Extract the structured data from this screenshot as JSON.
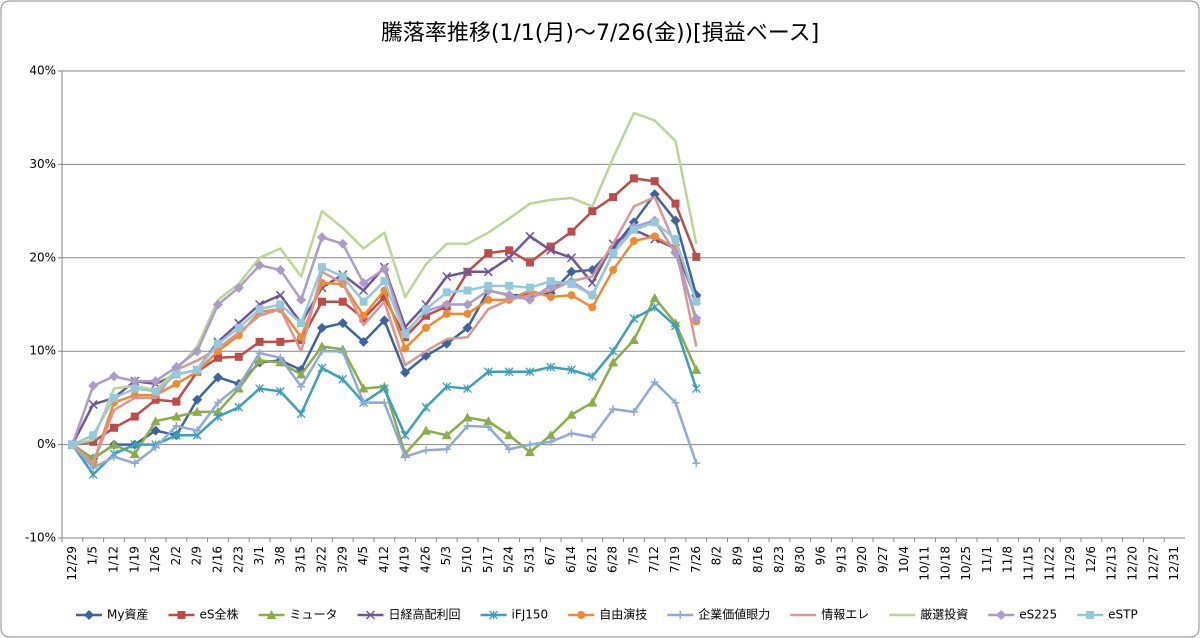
{
  "chart_data": {
    "type": "line",
    "title": "騰落率推移(1/1(月)〜7/26(金))[損益ベース]",
    "categories": [
      "12/29",
      "1/5",
      "1/12",
      "1/19",
      "1/26",
      "2/2",
      "2/9",
      "2/16",
      "2/23",
      "3/1",
      "3/8",
      "3/15",
      "3/22",
      "3/29",
      "4/5",
      "4/12",
      "4/19",
      "4/26",
      "5/3",
      "5/10",
      "5/17",
      "5/24",
      "5/31",
      "6/7",
      "6/14",
      "6/21",
      "6/28",
      "7/5",
      "7/12",
      "7/19",
      "7/26",
      "8/2",
      "8/9",
      "8/16",
      "8/23",
      "8/30",
      "9/6",
      "9/13",
      "9/20",
      "9/27",
      "10/4",
      "10/11",
      "10/18",
      "10/25",
      "11/1",
      "11/8",
      "11/15",
      "11/22",
      "11/29",
      "12/6",
      "12/13",
      "12/20",
      "12/27",
      "12/31"
    ],
    "ylim": [
      -10,
      40
    ],
    "yticks": [
      {
        "value": -10,
        "label": "-10%"
      },
      {
        "value": 0,
        "label": "0%"
      },
      {
        "value": 10,
        "label": "10%"
      },
      {
        "value": 20,
        "label": "20%"
      },
      {
        "value": 30,
        "label": "30%"
      },
      {
        "value": 40,
        "label": "40%"
      }
    ],
    "grid": true,
    "legend": "bottom",
    "series": [
      {
        "name": "My資産",
        "color": "#3e64a0",
        "marker": "diamond",
        "values": [
          0,
          -1.5,
          0,
          0,
          1.5,
          1,
          4.8,
          7.2,
          6.5,
          8.8,
          9,
          8,
          12.5,
          13,
          11,
          13.3,
          7.7,
          9.5,
          10.8,
          12.5,
          16.5,
          16,
          16,
          16.2,
          18.5,
          18.7,
          21,
          23.8,
          26.8,
          24,
          16,
          null,
          null,
          null,
          null,
          null,
          null,
          null,
          null,
          null,
          null,
          null,
          null,
          null,
          null,
          null,
          null,
          null,
          null,
          null,
          null,
          null,
          null,
          null
        ]
      },
      {
        "name": "eS全株",
        "color": "#be4b48",
        "marker": "square",
        "values": [
          0,
          0.3,
          1.8,
          3,
          4.8,
          4.6,
          7.8,
          9.3,
          9.4,
          11,
          11,
          11.2,
          15.3,
          15.3,
          13.5,
          15.8,
          11.5,
          13.8,
          14.8,
          18.5,
          20.5,
          20.8,
          19.5,
          21.2,
          22.8,
          25,
          26.5,
          28.5,
          28.2,
          25.8,
          20.1,
          null,
          null,
          null,
          null,
          null,
          null,
          null,
          null,
          null,
          null,
          null,
          null,
          null,
          null,
          null,
          null,
          null,
          null,
          null,
          null,
          null,
          null,
          null
        ]
      },
      {
        "name": "ミュータ",
        "color": "#8aad45",
        "marker": "triangle",
        "values": [
          0,
          -1.5,
          0,
          -1,
          2.5,
          3,
          3.5,
          3.5,
          6,
          9,
          8.8,
          7.5,
          10.5,
          10.2,
          6,
          6.2,
          -1,
          1.5,
          1,
          2.9,
          2.5,
          1,
          -0.8,
          1,
          3.2,
          4.5,
          8.8,
          11.2,
          15.7,
          13,
          8,
          null,
          null,
          null,
          null,
          null,
          null,
          null,
          null,
          null,
          null,
          null,
          null,
          null,
          null,
          null,
          null,
          null,
          null,
          null,
          null,
          null,
          null,
          null
        ]
      },
      {
        "name": "日経高配利回",
        "color": "#70559a",
        "marker": "x",
        "values": [
          0,
          4.3,
          5,
          6.8,
          6.5,
          7.5,
          8,
          11,
          13,
          15,
          16,
          13,
          16.8,
          18.2,
          16.5,
          19,
          12.6,
          15,
          18,
          18.5,
          18.5,
          20,
          22.3,
          20.8,
          20,
          17.3,
          21.5,
          23,
          22,
          21,
          15.5,
          null,
          null,
          null,
          null,
          null,
          null,
          null,
          null,
          null,
          null,
          null,
          null,
          null,
          null,
          null,
          null,
          null,
          null,
          null,
          null,
          null,
          null,
          null
        ]
      },
      {
        "name": "iFJ150",
        "color": "#3aa0bc",
        "marker": "star",
        "values": [
          0,
          -3.2,
          -1,
          0,
          0,
          1,
          1,
          3,
          4,
          6,
          5.7,
          3.3,
          8.2,
          7,
          4.5,
          6,
          1,
          4,
          6.2,
          6,
          7.8,
          7.8,
          7.8,
          8.3,
          8,
          7.3,
          10,
          13.5,
          14.7,
          12.7,
          6,
          null,
          null,
          null,
          null,
          null,
          null,
          null,
          null,
          null,
          null,
          null,
          null,
          null,
          null,
          null,
          null,
          null,
          null,
          null,
          null,
          null,
          null,
          null
        ]
      },
      {
        "name": "自由演技",
        "color": "#f08a30",
        "marker": "circle",
        "values": [
          0,
          -2,
          4.5,
          5.3,
          5.3,
          6.5,
          7.8,
          10,
          11.7,
          14.2,
          14.5,
          11.5,
          17.3,
          17.2,
          13.8,
          16.5,
          10.3,
          12.5,
          14,
          14,
          15.5,
          15.5,
          16.5,
          15.8,
          16,
          14.7,
          18.7,
          21.8,
          22.3,
          21,
          13.2,
          null,
          null,
          null,
          null,
          null,
          null,
          null,
          null,
          null,
          null,
          null,
          null,
          null,
          null,
          null,
          null,
          null,
          null,
          null,
          null,
          null,
          null,
          null
        ]
      },
      {
        "name": "企業価値眼力",
        "color": "#8faad6",
        "marker": "plus",
        "values": [
          0,
          -2.5,
          -1.3,
          -2,
          -0.3,
          2,
          1.5,
          4.5,
          6.3,
          9.8,
          9.3,
          6.2,
          10,
          10,
          4.5,
          4.5,
          -1.3,
          -0.6,
          -0.5,
          2,
          1.9,
          -0.5,
          0,
          0.3,
          1.2,
          0.8,
          3.8,
          3.5,
          6.7,
          4.5,
          -2,
          null,
          null,
          null,
          null,
          null,
          null,
          null,
          null,
          null,
          null,
          null,
          null,
          null,
          null,
          null,
          null,
          null,
          null,
          null,
          null,
          null,
          null,
          null
        ]
      },
      {
        "name": "情報エレ",
        "color": "#d99694",
        "marker": "none",
        "values": [
          0,
          -2,
          3.7,
          5,
          5,
          8,
          9,
          10.3,
          12,
          13.8,
          14.5,
          10,
          18.5,
          17.3,
          12.8,
          15.3,
          8.5,
          10,
          11.3,
          11.5,
          14.5,
          15.5,
          16,
          16.5,
          17.5,
          18,
          21.5,
          25.5,
          26.5,
          21.3,
          10.5,
          null,
          null,
          null,
          null,
          null,
          null,
          null,
          null,
          null,
          null,
          null,
          null,
          null,
          null,
          null,
          null,
          null,
          null,
          null,
          null,
          null,
          null,
          null
        ]
      },
      {
        "name": "厳選投資",
        "color": "#bcd596",
        "marker": "none",
        "values": [
          0,
          0.5,
          6,
          6.3,
          5.8,
          8,
          10.5,
          15.5,
          17.2,
          20,
          21,
          18,
          25,
          23.2,
          21,
          22.7,
          15.8,
          19.3,
          21.5,
          21.5,
          22.7,
          24.2,
          25.8,
          26.2,
          26.4,
          25.5,
          30.7,
          35.5,
          34.7,
          32.5,
          21.5,
          null,
          null,
          null,
          null,
          null,
          null,
          null,
          null,
          null,
          null,
          null,
          null,
          null,
          null,
          null,
          null,
          null,
          null,
          null,
          null,
          null,
          null,
          null
        ]
      },
      {
        "name": "eS225",
        "color": "#ad9cc9",
        "marker": "diamond",
        "values": [
          0,
          6.3,
          7.3,
          6.8,
          6.8,
          8.3,
          10,
          15,
          16.8,
          19.2,
          18.7,
          15.5,
          22.2,
          21.5,
          17.3,
          18.8,
          12,
          14.3,
          15,
          15,
          16.5,
          16,
          15.5,
          17,
          17.5,
          16,
          20.5,
          23.3,
          24,
          20.5,
          13.5,
          null,
          null,
          null,
          null,
          null,
          null,
          null,
          null,
          null,
          null,
          null,
          null,
          null,
          null,
          null,
          null,
          null,
          null,
          null,
          null,
          null,
          null,
          null
        ]
      },
      {
        "name": "eSTP",
        "color": "#93c9dc",
        "marker": "square",
        "values": [
          0,
          1,
          5,
          6,
          5.7,
          7.5,
          8,
          10.8,
          12.5,
          14.5,
          15,
          13,
          19,
          18,
          15.3,
          17.5,
          11.8,
          14.5,
          16.3,
          16.5,
          17,
          17,
          16.8,
          17.5,
          17.2,
          16,
          20.5,
          23,
          23.8,
          22,
          15.3,
          null,
          null,
          null,
          null,
          null,
          null,
          null,
          null,
          null,
          null,
          null,
          null,
          null,
          null,
          null,
          null,
          null,
          null,
          null,
          null,
          null,
          null,
          null
        ]
      }
    ]
  }
}
